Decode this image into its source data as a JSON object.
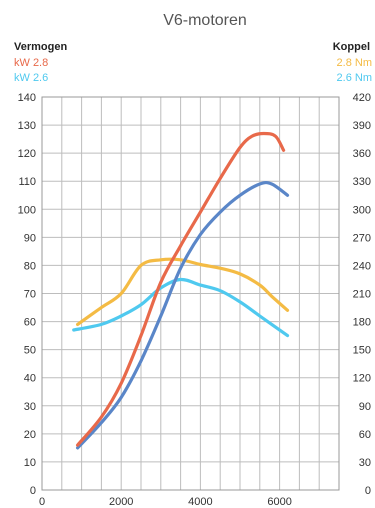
{
  "chart_data": {
    "type": "line",
    "title": "V6-motoren",
    "left_axis_label": "Vermogen",
    "right_axis_label": "Koppel",
    "x_ticks": [
      "0",
      "2000",
      "4000",
      "6000"
    ],
    "left_ticks": [
      "0",
      "10",
      "20",
      "30",
      "40",
      "50",
      "60",
      "70",
      "80",
      "90",
      "100",
      "110",
      "120",
      "130",
      "140"
    ],
    "right_ticks": [
      "0",
      "30",
      "60",
      "90",
      "120",
      "150",
      "180",
      "210",
      "240",
      "270",
      "300",
      "330",
      "360",
      "390",
      "420"
    ],
    "xlim": [
      0,
      7500
    ],
    "ylim_left": [
      0,
      140
    ],
    "ylim_right": [
      0,
      420
    ],
    "grid": true,
    "series": [
      {
        "name": "kW 2.8",
        "axis": "left",
        "color": "#e8694a",
        "points": [
          [
            900,
            16
          ],
          [
            1500,
            26
          ],
          [
            2000,
            38
          ],
          [
            2500,
            55
          ],
          [
            3000,
            74
          ],
          [
            3500,
            87
          ],
          [
            4000,
            99
          ],
          [
            4500,
            111
          ],
          [
            5000,
            122
          ],
          [
            5300,
            126
          ],
          [
            5600,
            127
          ],
          [
            5900,
            126
          ],
          [
            6100,
            121
          ]
        ]
      },
      {
        "name": "kW 2.6",
        "axis": "left",
        "color": "#5a86c8",
        "points": [
          [
            900,
            15
          ],
          [
            1500,
            24
          ],
          [
            2000,
            33
          ],
          [
            2500,
            46
          ],
          [
            3000,
            62
          ],
          [
            3500,
            79
          ],
          [
            4000,
            91
          ],
          [
            4500,
            99
          ],
          [
            5000,
            105
          ],
          [
            5500,
            109
          ],
          [
            5800,
            109
          ],
          [
            6200,
            105
          ]
        ]
      },
      {
        "name": "2.8 Nm",
        "axis": "right",
        "color": "#f4bb44",
        "points": [
          [
            900,
            177
          ],
          [
            1500,
            195
          ],
          [
            2000,
            210
          ],
          [
            2500,
            240
          ],
          [
            3000,
            246
          ],
          [
            3500,
            246
          ],
          [
            4000,
            241
          ],
          [
            4500,
            237
          ],
          [
            5000,
            231
          ],
          [
            5500,
            219
          ],
          [
            5800,
            207
          ],
          [
            6200,
            192
          ]
        ]
      },
      {
        "name": "2.6 Nm",
        "axis": "right",
        "color": "#4fc9ef",
        "points": [
          [
            800,
            171
          ],
          [
            1500,
            177
          ],
          [
            2000,
            186
          ],
          [
            2500,
            198
          ],
          [
            3000,
            216
          ],
          [
            3500,
            225
          ],
          [
            4000,
            219
          ],
          [
            4500,
            213
          ],
          [
            5000,
            201
          ],
          [
            5500,
            186
          ],
          [
            6200,
            165
          ]
        ]
      }
    ],
    "legend_left": [
      "kW 2.8",
      "kW 2.6"
    ],
    "legend_right": [
      "2.8 Nm",
      "2.6 Nm"
    ]
  }
}
